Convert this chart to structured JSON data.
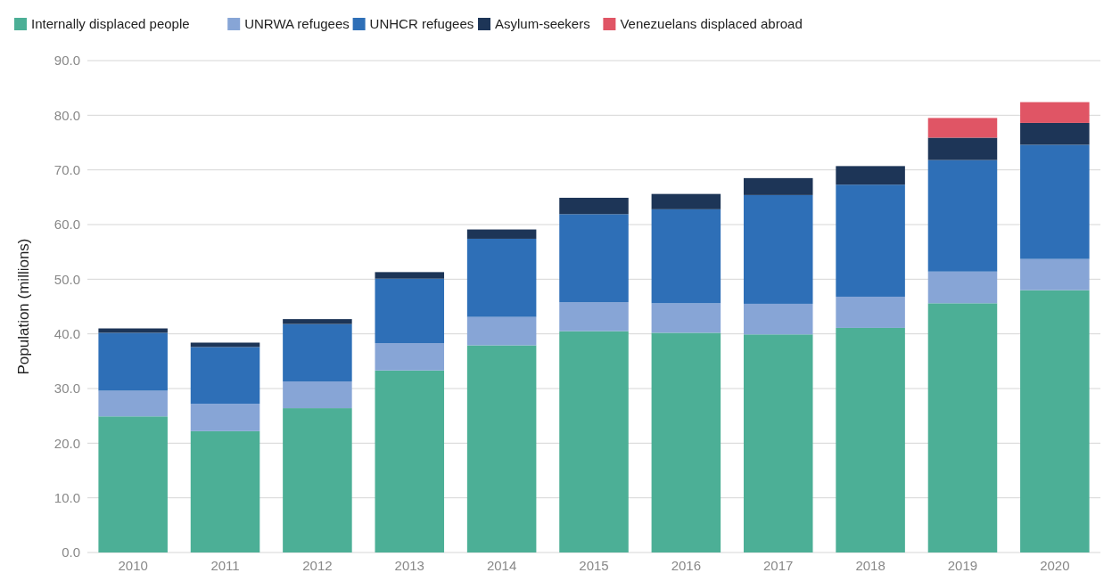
{
  "chart_data": {
    "type": "bar",
    "stacked": true,
    "ylabel": "Population (millions)",
    "categories": [
      "2010",
      "2011",
      "2012",
      "2013",
      "2014",
      "2015",
      "2016",
      "2017",
      "2018",
      "2019",
      "2020"
    ],
    "series": [
      {
        "name": "Internally displaced people",
        "color": "#4caf96",
        "values": [
          24.9,
          22.2,
          26.4,
          33.3,
          37.9,
          40.5,
          40.2,
          39.9,
          41.1,
          45.6,
          48.0
        ]
      },
      {
        "name": "UNRWA refugees",
        "color": "#87a5d6",
        "values": [
          4.7,
          5.0,
          4.9,
          5.0,
          5.2,
          5.3,
          5.4,
          5.6,
          5.7,
          5.8,
          5.7
        ]
      },
      {
        "name": "UNHCR refugees",
        "color": "#2e6fb7",
        "values": [
          10.6,
          10.4,
          10.5,
          11.8,
          14.3,
          16.1,
          17.2,
          19.9,
          20.5,
          20.4,
          20.9
        ]
      },
      {
        "name": "Asylum-seekers",
        "color": "#1d3557",
        "values": [
          0.8,
          0.8,
          0.9,
          1.2,
          1.7,
          3.0,
          2.8,
          3.1,
          3.4,
          4.1,
          4.0
        ]
      },
      {
        "name": "Venezuelans displaced abroad",
        "color": "#e05565",
        "values": [
          null,
          null,
          null,
          null,
          null,
          null,
          null,
          null,
          null,
          3.6,
          3.8
        ]
      }
    ],
    "ylim": [
      0,
      90
    ],
    "yticks": [
      {
        "value": 0,
        "label": "0.0"
      },
      {
        "value": 10,
        "label": "10.0"
      },
      {
        "value": 20,
        "label": "20.0"
      },
      {
        "value": 30,
        "label": "30.0"
      },
      {
        "value": 40,
        "label": "40.0"
      },
      {
        "value": 50,
        "label": "50.0"
      },
      {
        "value": 60,
        "label": "60.0"
      },
      {
        "value": 70,
        "label": "70.0"
      },
      {
        "value": 80,
        "label": "80.0"
      },
      {
        "value": 90,
        "label": "90.0"
      }
    ],
    "grid": "y",
    "legend": "top left"
  }
}
